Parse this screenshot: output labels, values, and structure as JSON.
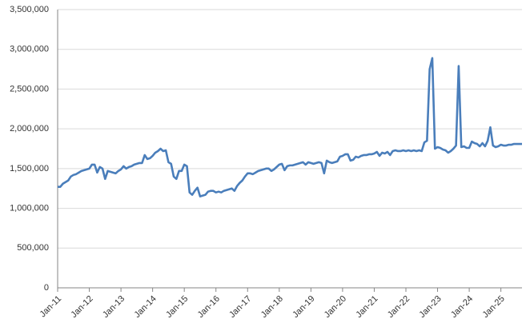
{
  "chart_data": {
    "type": "line",
    "categories": [
      "Jan-11",
      null,
      null,
      null,
      null,
      null,
      null,
      null,
      null,
      null,
      null,
      null,
      "Jan-12",
      null,
      null,
      null,
      null,
      null,
      null,
      null,
      null,
      null,
      null,
      null,
      "Jan-13",
      null,
      null,
      null,
      null,
      null,
      null,
      null,
      null,
      null,
      null,
      null,
      "Jan-14",
      null,
      null,
      null,
      null,
      null,
      null,
      null,
      null,
      null,
      null,
      null,
      "Jan-15",
      null,
      null,
      null,
      null,
      null,
      null,
      null,
      null,
      null,
      null,
      null,
      "Jan-16",
      null,
      null,
      null,
      null,
      null,
      null,
      null,
      null,
      null,
      null,
      null,
      "Jan-17",
      null,
      null,
      null,
      null,
      null,
      null,
      null,
      null,
      null,
      null,
      null,
      "Jan-18",
      null,
      null,
      null,
      null,
      null,
      null,
      null,
      null,
      null,
      null,
      null,
      "Jan-19",
      null,
      null,
      null,
      null,
      null,
      null,
      null,
      null,
      null,
      null,
      null,
      "Jan-20",
      null,
      null,
      null,
      null,
      null,
      null,
      null,
      null,
      null,
      null,
      null,
      "Jan-21",
      null,
      null,
      null,
      null,
      null,
      null,
      null,
      null,
      null,
      null,
      null,
      "Jan-22",
      null,
      null,
      null,
      null,
      null,
      null,
      null,
      null,
      null,
      null,
      null,
      "Jan-23",
      null,
      null,
      null,
      null,
      null,
      null,
      null,
      null,
      null,
      null,
      null,
      "Jan-24",
      null,
      null,
      null,
      null,
      null,
      null,
      null,
      null,
      null,
      null,
      null,
      "Jan-25",
      null,
      null,
      null,
      null,
      null,
      null,
      null,
      null
    ],
    "series": [
      {
        "color": "#4a7ebb",
        "values": [
          1270000,
          1270000,
          1310000,
          1330000,
          1350000,
          1400000,
          1420000,
          1430000,
          1450000,
          1470000,
          1480000,
          1490000,
          1500000,
          1550000,
          1550000,
          1450000,
          1520000,
          1500000,
          1370000,
          1470000,
          1460000,
          1450000,
          1440000,
          1470000,
          1490000,
          1530000,
          1500000,
          1520000,
          1530000,
          1550000,
          1560000,
          1570000,
          1570000,
          1670000,
          1620000,
          1630000,
          1660000,
          1700000,
          1720000,
          1750000,
          1720000,
          1730000,
          1580000,
          1560000,
          1400000,
          1370000,
          1470000,
          1470000,
          1550000,
          1530000,
          1200000,
          1170000,
          1220000,
          1260000,
          1150000,
          1160000,
          1170000,
          1210000,
          1220000,
          1220000,
          1200000,
          1210000,
          1200000,
          1220000,
          1230000,
          1240000,
          1250000,
          1220000,
          1280000,
          1320000,
          1350000,
          1400000,
          1440000,
          1440000,
          1430000,
          1450000,
          1470000,
          1480000,
          1490000,
          1500000,
          1500000,
          1470000,
          1490000,
          1520000,
          1550000,
          1560000,
          1480000,
          1530000,
          1540000,
          1540000,
          1550000,
          1560000,
          1570000,
          1580000,
          1550000,
          1580000,
          1570000,
          1560000,
          1570000,
          1580000,
          1570000,
          1440000,
          1600000,
          1580000,
          1570000,
          1580000,
          1590000,
          1650000,
          1660000,
          1680000,
          1680000,
          1600000,
          1610000,
          1650000,
          1640000,
          1660000,
          1670000,
          1670000,
          1680000,
          1680000,
          1690000,
          1710000,
          1660000,
          1700000,
          1690000,
          1710000,
          1670000,
          1720000,
          1730000,
          1720000,
          1720000,
          1730000,
          1720000,
          1730000,
          1720000,
          1730000,
          1720000,
          1730000,
          1720000,
          1830000,
          1850000,
          2750000,
          2890000,
          1750000,
          1770000,
          1760000,
          1740000,
          1730000,
          1700000,
          1720000,
          1750000,
          1790000,
          2790000,
          1770000,
          1780000,
          1760000,
          1760000,
          1840000,
          1820000,
          1810000,
          1780000,
          1820000,
          1780000,
          1850000,
          2020000,
          1790000,
          1770000,
          1780000,
          1800000,
          1790000,
          1790000,
          1800000,
          1800000,
          1810000,
          1810000,
          1810000,
          1810000
        ]
      }
    ],
    "ylim": [
      0,
      3500000
    ],
    "yticks": [
      0,
      {
        "value": 500000,
        "label": "500,000"
      },
      {
        "value": 1000000,
        "label": "1,000,000"
      },
      {
        "value": 1500000,
        "label": "1,500,000"
      },
      {
        "value": 2000000,
        "label": "2,000,000"
      },
      {
        "value": 2500000,
        "label": "2,500,000"
      },
      {
        "value": 3000000,
        "label": "3,000,000"
      },
      {
        "value": 3500000,
        "label": "3,500,000"
      }
    ],
    "grid": true
  }
}
